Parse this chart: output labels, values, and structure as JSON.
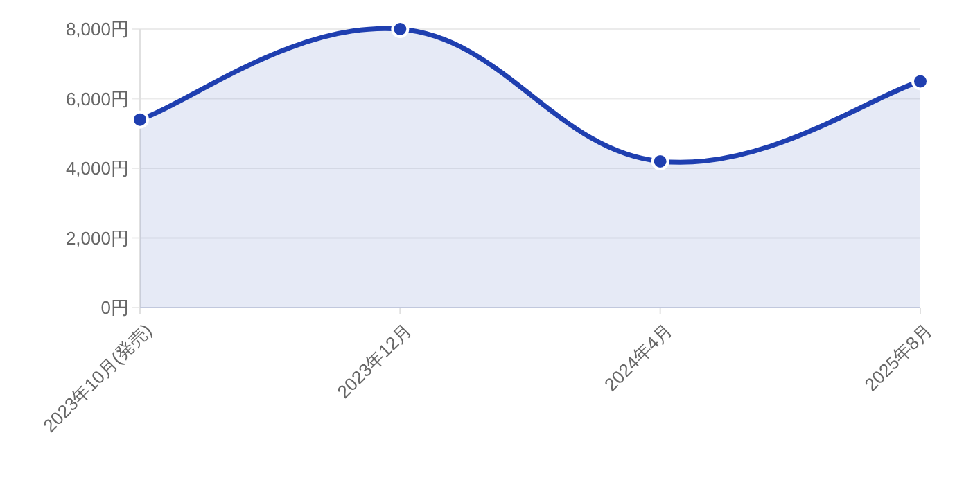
{
  "chart_data": {
    "type": "area",
    "categories": [
      "2023年10月(発売)",
      "2023年12月",
      "2024年4月",
      "2025年8月"
    ],
    "series": [
      {
        "color": "#1f3fb0",
        "values": [
          5400,
          8000,
          4200,
          6500
        ]
      }
    ],
    "ylim": [
      0,
      8000
    ],
    "yticks": [
      {
        "value": 0,
        "label": "0円"
      },
      {
        "value": 2000,
        "label": "2,000円"
      },
      {
        "value": 4000,
        "label": "4,000円"
      },
      {
        "value": 6000,
        "label": "6,000円"
      },
      {
        "value": 8000,
        "label": "8,000円"
      }
    ],
    "grid": "y",
    "marker": "circle",
    "line_style": "solid"
  }
}
